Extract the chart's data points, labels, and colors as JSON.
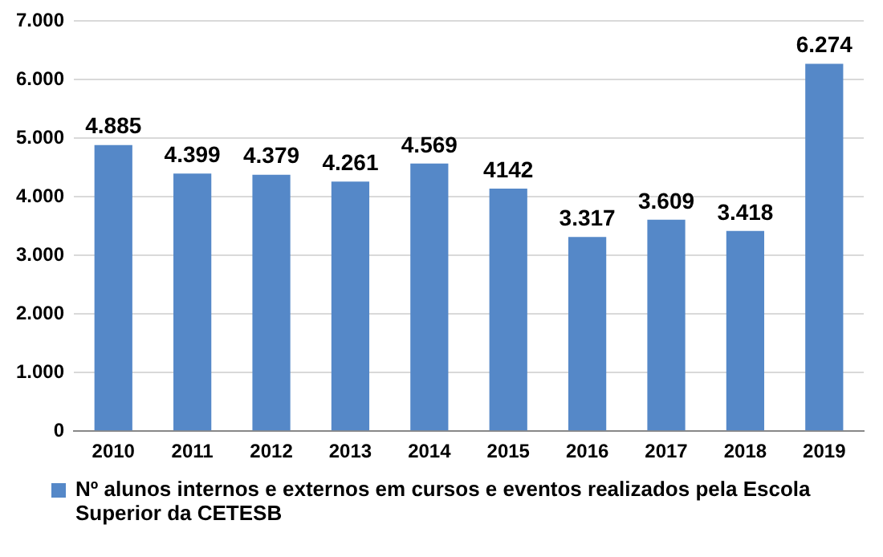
{
  "chart_data": {
    "type": "bar",
    "categories": [
      "2010",
      "2011",
      "2012",
      "2013",
      "2014",
      "2015",
      "2016",
      "2017",
      "2018",
      "2019"
    ],
    "series": [
      {
        "name": "Nº alunos internos e externos em cursos e eventos realizados pela Escola Superior da CETESB",
        "color": "#5588c8",
        "values": [
          4885,
          4399,
          4379,
          4261,
          4569,
          4142,
          3317,
          3609,
          3418,
          6274
        ],
        "value_labels": [
          "4.885",
          "4.399",
          "4.379",
          "4.261",
          "4.569",
          "4142",
          "3.317",
          "3.609",
          "3.418",
          "6.274"
        ]
      }
    ],
    "ylim": [
      0,
      7000
    ],
    "yticks": [
      {
        "value": 0,
        "label": "0"
      },
      {
        "value": 1000,
        "label": "1.000"
      },
      {
        "value": 2000,
        "label": "2.000"
      },
      {
        "value": 3000,
        "label": "3.000"
      },
      {
        "value": 4000,
        "label": "4.000"
      },
      {
        "value": 5000,
        "label": "5.000"
      },
      {
        "value": 6000,
        "label": "6.000"
      },
      {
        "value": 7000,
        "label": "7.000"
      }
    ],
    "grid": "y",
    "legend": "bottom"
  }
}
